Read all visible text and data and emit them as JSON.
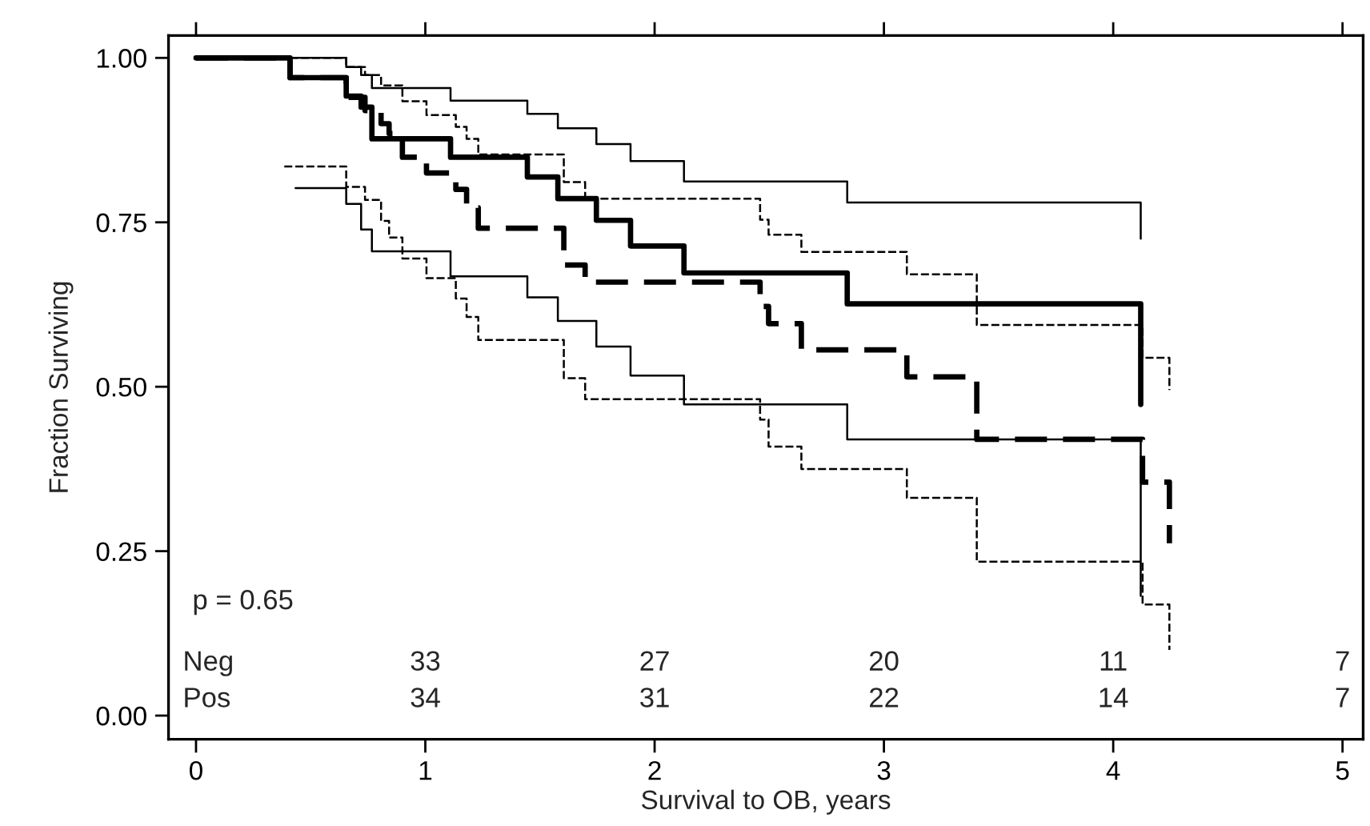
{
  "chart_data": {
    "type": "step",
    "xlabel": "Survival to OB, years",
    "ylabel": "Fraction Surviving",
    "xlim": [
      -0.12,
      5.09
    ],
    "xticks": [
      0,
      1,
      2,
      3,
      4,
      5
    ],
    "ylim": [
      -0.036,
      1.034
    ],
    "yticks": [
      {
        "value": 0,
        "label": "0.00"
      },
      {
        "value": 0.25,
        "label": "0.25"
      },
      {
        "value": 0.5,
        "label": "0.50"
      },
      {
        "value": 0.75,
        "label": "0.75"
      },
      {
        "value": 1,
        "label": "1.00"
      }
    ],
    "grid": false,
    "legend": false,
    "series": [
      {
        "color": "#000000",
        "line_style": "solid",
        "x": [
          0,
          0.41,
          0.655,
          0.72,
          0.767,
          1.11,
          1.445,
          1.578,
          1.746,
          1.895,
          2.128,
          2.84,
          4.12
        ],
        "values": [
          1.0,
          0.97,
          0.942,
          0.925,
          0.877,
          0.849,
          0.819,
          0.786,
          0.753,
          0.714,
          0.673,
          0.626,
          0.473
        ]
      },
      {
        "color": "#000000",
        "line_style": "dashed",
        "x": [
          0,
          0.41,
          0.655,
          0.737,
          0.807,
          0.842,
          0.9,
          1.005,
          1.133,
          1.18,
          1.231,
          1.604,
          1.697,
          2.46,
          2.497,
          2.64,
          3.1,
          3.405,
          4.128,
          4.245
        ],
        "values": [
          1.0,
          0.97,
          0.94,
          0.92,
          0.9,
          0.885,
          0.849,
          0.825,
          0.8,
          0.772,
          0.741,
          0.685,
          0.659,
          0.622,
          0.596,
          0.556,
          0.515,
          0.42,
          0.355,
          0.262
        ]
      },
      {
        "color": "#000000",
        "line_style": "solid",
        "x": [
          0.41,
          0.655,
          0.72,
          0.767,
          1.11,
          1.445,
          1.578,
          1.746,
          1.895,
          2.128,
          2.84,
          4.12
        ],
        "values": [
          1.0,
          0.986,
          0.974,
          0.954,
          0.935,
          0.915,
          0.893,
          0.869,
          0.843,
          0.812,
          0.78,
          0.725
        ]
      },
      {
        "color": "#000000",
        "line_style": "solid",
        "x": [
          0.434,
          0.655,
          0.72,
          0.767,
          1.11,
          1.445,
          1.578,
          1.746,
          1.895,
          2.128,
          2.84,
          4.12
        ],
        "values": [
          0.802,
          0.778,
          0.739,
          0.706,
          0.668,
          0.636,
          0.6,
          0.561,
          0.517,
          0.473,
          0.42,
          0.182
        ]
      },
      {
        "color": "#000000",
        "line_style": "dashed",
        "x": [
          0.41,
          0.655,
          0.737,
          0.807,
          0.842,
          0.9,
          1.005,
          1.133,
          1.18,
          1.231,
          1.604,
          1.697,
          2.46,
          2.497,
          2.64,
          3.1,
          3.405,
          4.128,
          4.245
        ],
        "values": [
          1.0,
          0.986,
          0.974,
          0.958,
          0.958,
          0.934,
          0.913,
          0.895,
          0.877,
          0.853,
          0.811,
          0.786,
          0.754,
          0.731,
          0.705,
          0.671,
          0.594,
          0.544,
          0.495
        ]
      },
      {
        "color": "#000000",
        "line_style": "dashed",
        "x": [
          0.385,
          0.655,
          0.737,
          0.807,
          0.842,
          0.9,
          1.005,
          1.133,
          1.18,
          1.231,
          1.604,
          1.697,
          2.46,
          2.497,
          2.64,
          3.1,
          3.405,
          4.128,
          4.245
        ],
        "values": [
          0.835,
          0.804,
          0.784,
          0.752,
          0.727,
          0.695,
          0.665,
          0.634,
          0.606,
          0.571,
          0.513,
          0.481,
          0.45,
          0.409,
          0.375,
          0.331,
          0.234,
          0.169,
          0.1
        ]
      }
    ],
    "annotations": [
      "p = 0.65",
      "Neg 33 27 20 11 7",
      "Pos 34 31 22 14 7"
    ]
  }
}
